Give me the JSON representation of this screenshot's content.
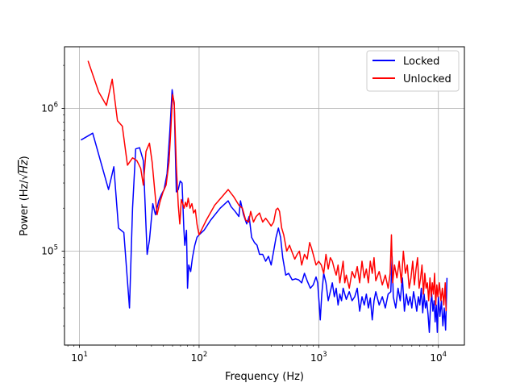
{
  "chart_data": {
    "type": "line",
    "xscale": "log",
    "yscale": "log",
    "xlim": [
      7.5,
      16500
    ],
    "ylim": [
      22000,
      2700000
    ],
    "grid": true,
    "legend_position": "top-right",
    "xlabel": "Frequency (Hz)",
    "ylabel": {
      "prefix": "Power (Hz/",
      "radical": "√",
      "radicand": "Hz",
      "suffix": ")"
    },
    "x_ticks": [
      {
        "value": 10,
        "base": "10",
        "exp": "1"
      },
      {
        "value": 100,
        "base": "10",
        "exp": "2"
      },
      {
        "value": 1000,
        "base": "10",
        "exp": "3"
      },
      {
        "value": 10000,
        "base": "10",
        "exp": "4"
      }
    ],
    "y_ticks": [
      {
        "value": 100000,
        "base": "10",
        "exp": "5"
      },
      {
        "value": 1000000,
        "base": "10",
        "exp": "6"
      }
    ],
    "series": [
      {
        "name": "Locked",
        "color": "#0000ff",
        "points": [
          [
            10.3,
            600000
          ],
          [
            12.9,
            670000
          ],
          [
            17.5,
            270000
          ],
          [
            19.4,
            390000
          ],
          [
            21.2,
            145000
          ],
          [
            23.5,
            135000
          ],
          [
            26.2,
            40000
          ],
          [
            27.8,
            200000
          ],
          [
            29.5,
            520000
          ],
          [
            31.8,
            530000
          ],
          [
            34.2,
            430000
          ],
          [
            36.8,
            95000
          ],
          [
            38.5,
            120000
          ],
          [
            41.0,
            215000
          ],
          [
            43.2,
            180000
          ],
          [
            46.0,
            225000
          ],
          [
            48.5,
            250000
          ],
          [
            51.0,
            270000
          ],
          [
            54.0,
            350000
          ],
          [
            57.0,
            700000
          ],
          [
            59.5,
            1350000
          ],
          [
            62.0,
            1050000
          ],
          [
            64.5,
            260000
          ],
          [
            67.0,
            270000
          ],
          [
            69.5,
            310000
          ],
          [
            72.0,
            300000
          ],
          [
            74.5,
            145000
          ],
          [
            76.0,
            110000
          ],
          [
            78.5,
            140000
          ],
          [
            80.0,
            55000
          ],
          [
            82.0,
            80000
          ],
          [
            85.0,
            72000
          ],
          [
            88.0,
            90000
          ],
          [
            92.0,
            110000
          ],
          [
            96.0,
            125000
          ],
          [
            100,
            130000
          ],
          [
            110,
            140000
          ],
          [
            125,
            165000
          ],
          [
            150,
            200000
          ],
          [
            175,
            225000
          ],
          [
            185,
            205000
          ],
          [
            200,
            190000
          ],
          [
            215,
            175000
          ],
          [
            222,
            225000
          ],
          [
            235,
            180000
          ],
          [
            250,
            155000
          ],
          [
            262,
            175000
          ],
          [
            275,
            125000
          ],
          [
            290,
            115000
          ],
          [
            305,
            110000
          ],
          [
            320,
            95000
          ],
          [
            340,
            95000
          ],
          [
            360,
            85000
          ],
          [
            380,
            92000
          ],
          [
            400,
            80000
          ],
          [
            420,
            100000
          ],
          [
            440,
            125000
          ],
          [
            460,
            145000
          ],
          [
            480,
            125000
          ],
          [
            500,
            90000
          ],
          [
            530,
            68000
          ],
          [
            560,
            70000
          ],
          [
            600,
            63000
          ],
          [
            640,
            64000
          ],
          [
            680,
            63000
          ],
          [
            720,
            60000
          ],
          [
            760,
            70000
          ],
          [
            800,
            62000
          ],
          [
            850,
            55000
          ],
          [
            900,
            58000
          ],
          [
            950,
            66000
          ],
          [
            980,
            60000
          ],
          [
            1010,
            42000
          ],
          [
            1030,
            33000
          ],
          [
            1060,
            50000
          ],
          [
            1100,
            70000
          ],
          [
            1150,
            60000
          ],
          [
            1200,
            45000
          ],
          [
            1250,
            52000
          ],
          [
            1300,
            60000
          ],
          [
            1350,
            48000
          ],
          [
            1400,
            55000
          ],
          [
            1450,
            42000
          ],
          [
            1500,
            50000
          ],
          [
            1550,
            45000
          ],
          [
            1600,
            55000
          ],
          [
            1700,
            46000
          ],
          [
            1800,
            52000
          ],
          [
            1900,
            45000
          ],
          [
            2000,
            48000
          ],
          [
            2100,
            55000
          ],
          [
            2200,
            38000
          ],
          [
            2300,
            48000
          ],
          [
            2400,
            42000
          ],
          [
            2500,
            50000
          ],
          [
            2600,
            40000
          ],
          [
            2700,
            47000
          ],
          [
            2800,
            33000
          ],
          [
            2900,
            45000
          ],
          [
            3000,
            52000
          ],
          [
            3200,
            42000
          ],
          [
            3400,
            48000
          ],
          [
            3600,
            40000
          ],
          [
            3800,
            50000
          ],
          [
            4000,
            52000
          ],
          [
            4100,
            92000
          ],
          [
            4200,
            48000
          ],
          [
            4400,
            40000
          ],
          [
            4600,
            55000
          ],
          [
            4800,
            45000
          ],
          [
            5000,
            65000
          ],
          [
            5200,
            38000
          ],
          [
            5400,
            50000
          ],
          [
            5600,
            42000
          ],
          [
            5800,
            48000
          ],
          [
            6000,
            40000
          ],
          [
            6200,
            52000
          ],
          [
            6400,
            45000
          ],
          [
            6600,
            38000
          ],
          [
            6800,
            48000
          ],
          [
            7000,
            42000
          ],
          [
            7200,
            55000
          ],
          [
            7400,
            37000
          ],
          [
            7600,
            50000
          ],
          [
            7800,
            40000
          ],
          [
            8000,
            45000
          ],
          [
            8200,
            36000
          ],
          [
            8400,
            27000
          ],
          [
            8600,
            42000
          ],
          [
            8800,
            50000
          ],
          [
            9000,
            38000
          ],
          [
            9200,
            45000
          ],
          [
            9400,
            32000
          ],
          [
            9600,
            42000
          ],
          [
            9800,
            27000
          ],
          [
            10000,
            48000
          ],
          [
            10300,
            35000
          ],
          [
            10600,
            45000
          ],
          [
            10900,
            30000
          ],
          [
            11200,
            40000
          ],
          [
            11500,
            28000
          ],
          [
            11800,
            65000
          ]
        ]
      },
      {
        "name": "Unlocked",
        "color": "#ff0000",
        "points": [
          [
            11.8,
            2150000
          ],
          [
            14.5,
            1300000
          ],
          [
            16.8,
            1050000
          ],
          [
            18.8,
            1600000
          ],
          [
            20.8,
            820000
          ],
          [
            22.8,
            750000
          ],
          [
            25.2,
            400000
          ],
          [
            27.8,
            450000
          ],
          [
            30.2,
            430000
          ],
          [
            32.5,
            380000
          ],
          [
            34.2,
            290000
          ],
          [
            36.0,
            500000
          ],
          [
            38.5,
            570000
          ],
          [
            40.5,
            420000
          ],
          [
            42.5,
            270000
          ],
          [
            44.5,
            180000
          ],
          [
            47.0,
            220000
          ],
          [
            50.0,
            260000
          ],
          [
            53.0,
            290000
          ],
          [
            56.0,
            420000
          ],
          [
            58.0,
            700000
          ],
          [
            60.0,
            1250000
          ],
          [
            62.0,
            1100000
          ],
          [
            64.5,
            400000
          ],
          [
            67.0,
            210000
          ],
          [
            69.0,
            155000
          ],
          [
            71.0,
            230000
          ],
          [
            73.0,
            215000
          ],
          [
            75.0,
            200000
          ],
          [
            77.0,
            220000
          ],
          [
            79.0,
            205000
          ],
          [
            81.0,
            235000
          ],
          [
            84.0,
            200000
          ],
          [
            87.0,
            215000
          ],
          [
            90.0,
            185000
          ],
          [
            93.0,
            195000
          ],
          [
            96.0,
            155000
          ],
          [
            100,
            130000
          ],
          [
            115,
            165000
          ],
          [
            135,
            210000
          ],
          [
            155,
            240000
          ],
          [
            175,
            270000
          ],
          [
            195,
            240000
          ],
          [
            215,
            210000
          ],
          [
            230,
            200000
          ],
          [
            245,
            165000
          ],
          [
            260,
            160000
          ],
          [
            270,
            190000
          ],
          [
            285,
            160000
          ],
          [
            300,
            175000
          ],
          [
            320,
            185000
          ],
          [
            340,
            160000
          ],
          [
            360,
            170000
          ],
          [
            380,
            160000
          ],
          [
            400,
            150000
          ],
          [
            420,
            160000
          ],
          [
            440,
            195000
          ],
          [
            455,
            200000
          ],
          [
            470,
            190000
          ],
          [
            490,
            145000
          ],
          [
            510,
            130000
          ],
          [
            540,
            100000
          ],
          [
            570,
            110000
          ],
          [
            600,
            98000
          ],
          [
            630,
            88000
          ],
          [
            660,
            95000
          ],
          [
            690,
            100000
          ],
          [
            720,
            80000
          ],
          [
            760,
            95000
          ],
          [
            800,
            88000
          ],
          [
            840,
            115000
          ],
          [
            870,
            105000
          ],
          [
            900,
            95000
          ],
          [
            950,
            80000
          ],
          [
            1000,
            85000
          ],
          [
            1050,
            80000
          ],
          [
            1100,
            70000
          ],
          [
            1150,
            95000
          ],
          [
            1200,
            75000
          ],
          [
            1250,
            90000
          ],
          [
            1300,
            85000
          ],
          [
            1350,
            75000
          ],
          [
            1400,
            68000
          ],
          [
            1450,
            80000
          ],
          [
            1500,
            60000
          ],
          [
            1550,
            72000
          ],
          [
            1600,
            85000
          ],
          [
            1650,
            60000
          ],
          [
            1700,
            68000
          ],
          [
            1800,
            55000
          ],
          [
            1900,
            72000
          ],
          [
            2000,
            65000
          ],
          [
            2100,
            78000
          ],
          [
            2200,
            60000
          ],
          [
            2300,
            85000
          ],
          [
            2400,
            65000
          ],
          [
            2500,
            75000
          ],
          [
            2600,
            60000
          ],
          [
            2700,
            85000
          ],
          [
            2800,
            70000
          ],
          [
            2900,
            90000
          ],
          [
            3000,
            62000
          ],
          [
            3200,
            72000
          ],
          [
            3400,
            58000
          ],
          [
            3600,
            68000
          ],
          [
            3800,
            55000
          ],
          [
            3950,
            70000
          ],
          [
            4050,
            130000
          ],
          [
            4150,
            60000
          ],
          [
            4300,
            80000
          ],
          [
            4500,
            65000
          ],
          [
            4700,
            85000
          ],
          [
            4900,
            60000
          ],
          [
            5100,
            100000
          ],
          [
            5300,
            70000
          ],
          [
            5500,
            80000
          ],
          [
            5700,
            55000
          ],
          [
            5900,
            65000
          ],
          [
            6100,
            85000
          ],
          [
            6300,
            58000
          ],
          [
            6500,
            75000
          ],
          [
            6700,
            90000
          ],
          [
            6900,
            55000
          ],
          [
            7100,
            65000
          ],
          [
            7300,
            80000
          ],
          [
            7500,
            50000
          ],
          [
            7700,
            70000
          ],
          [
            7900,
            55000
          ],
          [
            8100,
            60000
          ],
          [
            8300,
            45000
          ],
          [
            8500,
            65000
          ],
          [
            8700,
            48000
          ],
          [
            8900,
            60000
          ],
          [
            9100,
            50000
          ],
          [
            9300,
            70000
          ],
          [
            9500,
            42000
          ],
          [
            9700,
            58000
          ],
          [
            9900,
            48000
          ],
          [
            10200,
            60000
          ],
          [
            10500,
            45000
          ],
          [
            10800,
            55000
          ],
          [
            11100,
            42000
          ],
          [
            11400,
            60000
          ],
          [
            11600,
            38000
          ]
        ]
      }
    ]
  }
}
